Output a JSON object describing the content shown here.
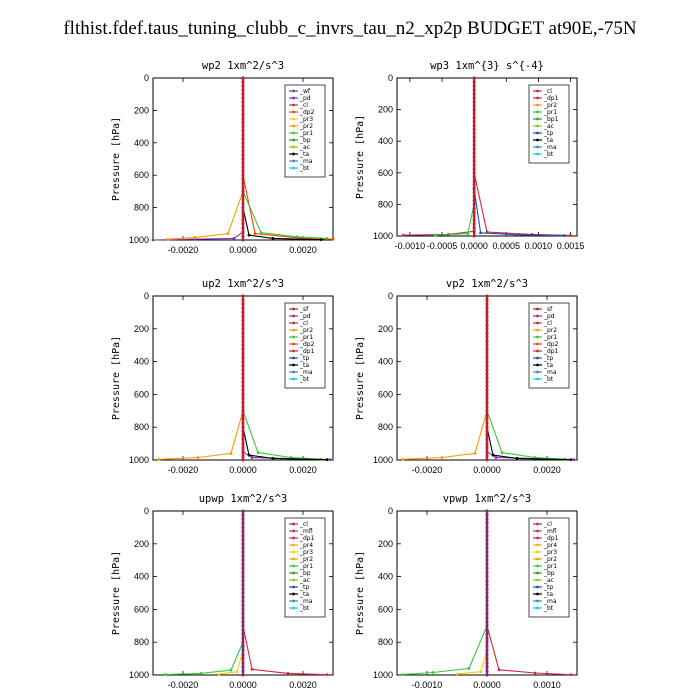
{
  "title": "flthist.fdef.taus_tuning_clubb_c_invrs_tau_n2_xp2p  BUDGET at90E,-75N",
  "colors": {
    "_wf": "#7b3fa0",
    "_pd": "#8a2bb0",
    "_cl": "#b03060",
    "_dp1": "#d7263d",
    "_dp2": "#ff4500",
    "_mfl": "#c0306a",
    "_pr1": "#33cc33",
    "_pr2": "#ff9900",
    "_pr3": "#ffcc00",
    "_pr4": "#e8b800",
    "_bp": "#339933",
    "_bp1": "#339933",
    "_ac": "#88cc00",
    "_tp": "#1f4fa8",
    "_ta": "#000000",
    "_ma": "#4682b4",
    "_bt": "#00ccff",
    "_sf": "#a52a2a"
  },
  "chart_data": [
    {
      "type": "line",
      "title": "wp2  1xm^2/s^3",
      "ylabel": "Pressure [hPa]",
      "ylim": [
        1000,
        0
      ],
      "xlim": [
        -0.003,
        0.003
      ],
      "xticks": [
        "-0.0020",
        "0.0000",
        "0.0020"
      ],
      "xtick_values": [
        -0.002,
        0.0,
        0.002
      ],
      "yticks": [
        "0",
        "200",
        "400",
        "600",
        "800",
        "1000"
      ],
      "legend": [
        "_wf",
        "_pd",
        "_cl",
        "_dp2",
        "_pr3",
        "_pr2",
        "_pr1",
        "_bp",
        "_ac",
        "_ta",
        "_ma",
        "_bt"
      ],
      "series": [
        {
          "name": "_pd",
          "x": [
            0,
            0,
            0,
            -0.0003,
            -0.003
          ],
          "y": [
            0,
            500,
            950,
            990,
            1000
          ]
        },
        {
          "name": "_dp2",
          "x": [
            0,
            0,
            0.0004,
            0.002,
            0.003
          ],
          "y": [
            0,
            600,
            960,
            990,
            995
          ]
        },
        {
          "name": "_pr1",
          "x": [
            0,
            0,
            0.0006,
            0.0018,
            0.0028
          ],
          "y": [
            0,
            700,
            955,
            980,
            990
          ]
        },
        {
          "name": "_pr2",
          "x": [
            0,
            0,
            -0.0005,
            -0.0016,
            -0.0025
          ],
          "y": [
            0,
            700,
            960,
            985,
            995
          ]
        },
        {
          "name": "_ta",
          "x": [
            0,
            0,
            0.0002,
            0.001,
            0.0026
          ],
          "y": [
            0,
            800,
            970,
            990,
            998
          ]
        },
        {
          "name": "_wf",
          "x": [
            0,
            0,
            0
          ],
          "y": [
            0,
            500,
            1000
          ]
        }
      ]
    },
    {
      "type": "line",
      "title": "wp3  1xm^{3} s^{-4}",
      "ylabel": "Pressure [hPa]",
      "ylim": [
        1000,
        0
      ],
      "xlim": [
        -0.0012,
        0.0016
      ],
      "xticks": [
        "-0.0010",
        "-0.0005",
        "0.0000",
        "0.0005",
        "0.0010",
        "0.0015"
      ],
      "xtick_values": [
        -0.001,
        -0.0005,
        0.0,
        0.0005,
        0.001,
        0.0015
      ],
      "yticks": [
        "0",
        "200",
        "400",
        "600",
        "800",
        "1000"
      ],
      "legend": [
        "_cl",
        "_dp1",
        "_pr2",
        "_pr1",
        "_bp1",
        "_ac",
        "_tp",
        "_ta",
        "_ma",
        "_bt"
      ],
      "series": [
        {
          "name": "_cl",
          "x": [
            0,
            0,
            0,
            -0.0004,
            -0.0011
          ],
          "y": [
            0,
            500,
            970,
            990,
            995
          ]
        },
        {
          "name": "_dp1",
          "x": [
            0,
            0,
            0.0002,
            0.0009,
            0.0015
          ],
          "y": [
            0,
            600,
            975,
            990,
            996
          ]
        },
        {
          "name": "_tp",
          "x": [
            0,
            0,
            0.0001,
            0.0007,
            0.0014
          ],
          "y": [
            0,
            700,
            980,
            993,
            998
          ]
        },
        {
          "name": "_pr1",
          "x": [
            0,
            0,
            -0.0001,
            -0.0006
          ],
          "y": [
            0,
            800,
            985,
            995
          ]
        }
      ]
    },
    {
      "type": "line",
      "title": "up2  1xm^2/s^3",
      "ylabel": "Pressure [hPa]",
      "ylim": [
        1000,
        0
      ],
      "xlim": [
        -0.003,
        0.003
      ],
      "xticks": [
        "-0.0020",
        "0.0000",
        "0.0020"
      ],
      "xtick_values": [
        -0.002,
        0.0,
        0.002
      ],
      "yticks": [
        "0",
        "200",
        "400",
        "600",
        "800",
        "1000"
      ],
      "legend": [
        "_sf",
        "_pd",
        "_cl",
        "_pr2",
        "_pr1",
        "_dp2",
        "_dp1",
        "_tp",
        "_ta",
        "_ma",
        "_bt"
      ],
      "series": [
        {
          "name": "_pd",
          "x": [
            0,
            0,
            0,
            0.0003,
            0.0029
          ],
          "y": [
            0,
            500,
            950,
            985,
            998
          ]
        },
        {
          "name": "_pr2",
          "x": [
            0,
            0,
            -0.0004,
            -0.0015,
            -0.0028
          ],
          "y": [
            0,
            700,
            960,
            985,
            996
          ]
        },
        {
          "name": "_pr1",
          "x": [
            0,
            0,
            0.0005,
            0.0016,
            0.0026
          ],
          "y": [
            0,
            700,
            955,
            985,
            995
          ]
        },
        {
          "name": "_ta",
          "x": [
            0,
            0,
            0.0002,
            0.001,
            0.0028
          ],
          "y": [
            0,
            800,
            970,
            990,
            998
          ]
        },
        {
          "name": "_dp2",
          "x": [
            0,
            0,
            0,
            0
          ],
          "y": [
            0,
            400,
            800,
            1000
          ]
        }
      ]
    },
    {
      "type": "line",
      "title": "vp2  1xm^2/s^3",
      "ylabel": "Pressure [hPa]",
      "ylim": [
        1000,
        0
      ],
      "xlim": [
        -0.003,
        0.003
      ],
      "xticks": [
        "-0.0020",
        "0.0000",
        "0.0020"
      ],
      "xtick_values": [
        -0.002,
        0.0,
        0.002
      ],
      "yticks": [
        "0",
        "200",
        "400",
        "600",
        "800",
        "1000"
      ],
      "legend": [
        "_sf",
        "_pd",
        "_cl",
        "_pr2",
        "_pr1",
        "_dp2",
        "_dp1",
        "_tp",
        "_ta",
        "_ma",
        "_bt"
      ],
      "series": [
        {
          "name": "_pd",
          "x": [
            0,
            0,
            0,
            0.0003,
            0.0029
          ],
          "y": [
            0,
            500,
            950,
            985,
            998
          ]
        },
        {
          "name": "_pr2",
          "x": [
            0,
            0,
            -0.0004,
            -0.0015,
            -0.0028
          ],
          "y": [
            0,
            700,
            960,
            985,
            996
          ]
        },
        {
          "name": "_pr1",
          "x": [
            0,
            0,
            0.0005,
            0.0016,
            0.0026
          ],
          "y": [
            0,
            700,
            955,
            985,
            995
          ]
        },
        {
          "name": "_ta",
          "x": [
            0,
            0,
            0.0002,
            0.001,
            0.0028
          ],
          "y": [
            0,
            800,
            970,
            990,
            998
          ]
        },
        {
          "name": "_dp2",
          "x": [
            0,
            0,
            0,
            0
          ],
          "y": [
            0,
            400,
            800,
            1000
          ]
        }
      ]
    },
    {
      "type": "line",
      "title": "upwp  1xm^2/s^3",
      "ylabel": "Pressure [hPa]",
      "ylim": [
        1000,
        0
      ],
      "xlim": [
        -0.003,
        0.003
      ],
      "xticks": [
        "-0.0020",
        "0.0000",
        "0.0020"
      ],
      "xtick_values": [
        -0.002,
        0.0,
        0.002
      ],
      "yticks": [
        "0",
        "200",
        "400",
        "600",
        "800",
        "1000"
      ],
      "legend": [
        "_cl",
        "_mfl",
        "_dp1",
        "_pr4",
        "_pr3",
        "_pr2",
        "_pr1",
        "_bp",
        "_ac",
        "_tp",
        "_ta",
        "_ma",
        "_bt"
      ],
      "series": [
        {
          "name": "_cl",
          "x": [
            0,
            0,
            0,
            0
          ],
          "y": [
            0,
            400,
            800,
            1000
          ]
        },
        {
          "name": "_dp1",
          "x": [
            0,
            0,
            0.0003,
            0.0015,
            0.0028
          ],
          "y": [
            0,
            700,
            965,
            990,
            998
          ]
        },
        {
          "name": "_pr1",
          "x": [
            0,
            0,
            -0.0004,
            -0.0014,
            -0.0026
          ],
          "y": [
            0,
            800,
            970,
            990,
            997
          ]
        },
        {
          "name": "_pr3",
          "x": [
            0,
            0,
            -0.0002,
            -0.0008
          ],
          "y": [
            0,
            850,
            980,
            995
          ]
        }
      ]
    },
    {
      "type": "line",
      "title": "vpwp  1xm^2/s^3",
      "ylabel": "Pressure [hPa]",
      "ylim": [
        1000,
        0
      ],
      "xlim": [
        -0.0015,
        0.0015
      ],
      "xticks": [
        "-0.0010",
        "0.0000",
        "0.0010"
      ],
      "xtick_values": [
        -0.001,
        0.0,
        0.001
      ],
      "yticks": [
        "0",
        "200",
        "400",
        "600",
        "800",
        "1000"
      ],
      "legend": [
        "_cl",
        "_mfl",
        "_dp1",
        "_pr4",
        "_pr3",
        "_pr2",
        "_pr1",
        "_bp",
        "_ac",
        "_tp",
        "_ta",
        "_ma",
        "_bt"
      ],
      "series": [
        {
          "name": "_cl",
          "x": [
            0,
            0,
            0,
            0
          ],
          "y": [
            0,
            400,
            800,
            1000
          ]
        },
        {
          "name": "_pr1",
          "x": [
            0,
            0,
            -0.0003,
            -0.0009,
            -0.0014
          ],
          "y": [
            0,
            700,
            960,
            985,
            997
          ]
        },
        {
          "name": "_dp1",
          "x": [
            0,
            0,
            0.0002,
            0.0008,
            0.0014
          ],
          "y": [
            0,
            700,
            968,
            988,
            998
          ]
        },
        {
          "name": "_pr3",
          "x": [
            0,
            0,
            -0.0001,
            -0.0005
          ],
          "y": [
            0,
            850,
            980,
            993
          ]
        }
      ]
    }
  ]
}
